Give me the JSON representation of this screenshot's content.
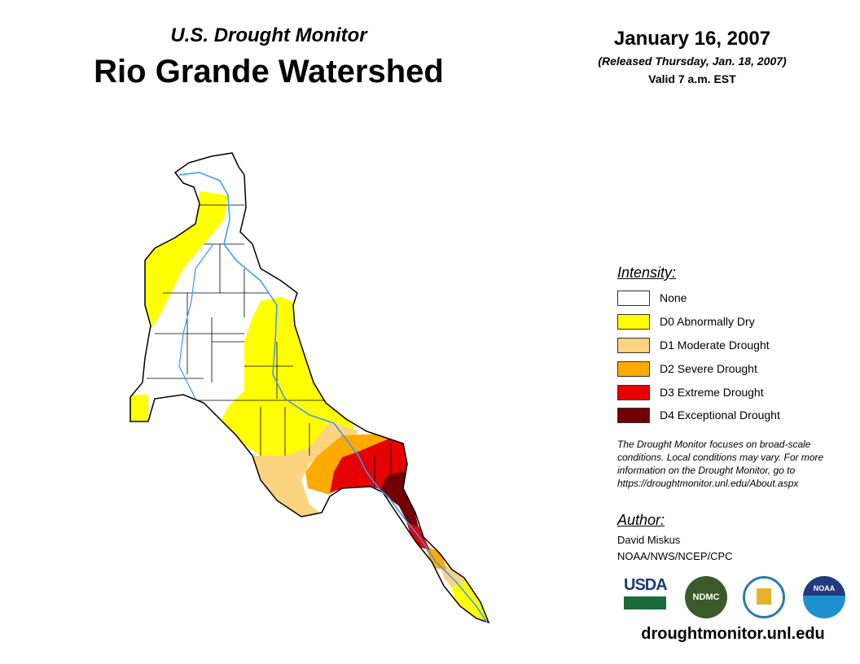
{
  "header": {
    "subtitle": "U.S. Drought Monitor",
    "title": "Rio Grande Watershed",
    "date": "January 16, 2007",
    "released": "(Released Thursday, Jan. 18, 2007)",
    "valid": "Valid 7 a.m. EST"
  },
  "legend": {
    "title": "Intensity:",
    "items": [
      {
        "label": "None",
        "color": "#ffffff"
      },
      {
        "label": "D0 Abnormally Dry",
        "color": "#ffff00"
      },
      {
        "label": "D1 Moderate Drought",
        "color": "#fcd37f"
      },
      {
        "label": "D2 Severe Drought",
        "color": "#ffaa00"
      },
      {
        "label": "D3 Extreme Drought",
        "color": "#e60000"
      },
      {
        "label": "D4 Exceptional Drought",
        "color": "#730000"
      }
    ]
  },
  "note": "The Drought Monitor focuses on broad-scale conditions. Local conditions may vary. For more information on the Drought Monitor, go to https://droughtmonitor.unl.edu/About.aspx",
  "author": {
    "title": "Author:",
    "name": "David Miskus",
    "org": "NOAA/NWS/NCEP/CPC"
  },
  "logos": {
    "usda": "USDA",
    "ndmc": "NDMC",
    "noaa": "NOAA"
  },
  "url": "droughtmonitor.unl.edu",
  "colors": {
    "river": "#3399ff"
  }
}
